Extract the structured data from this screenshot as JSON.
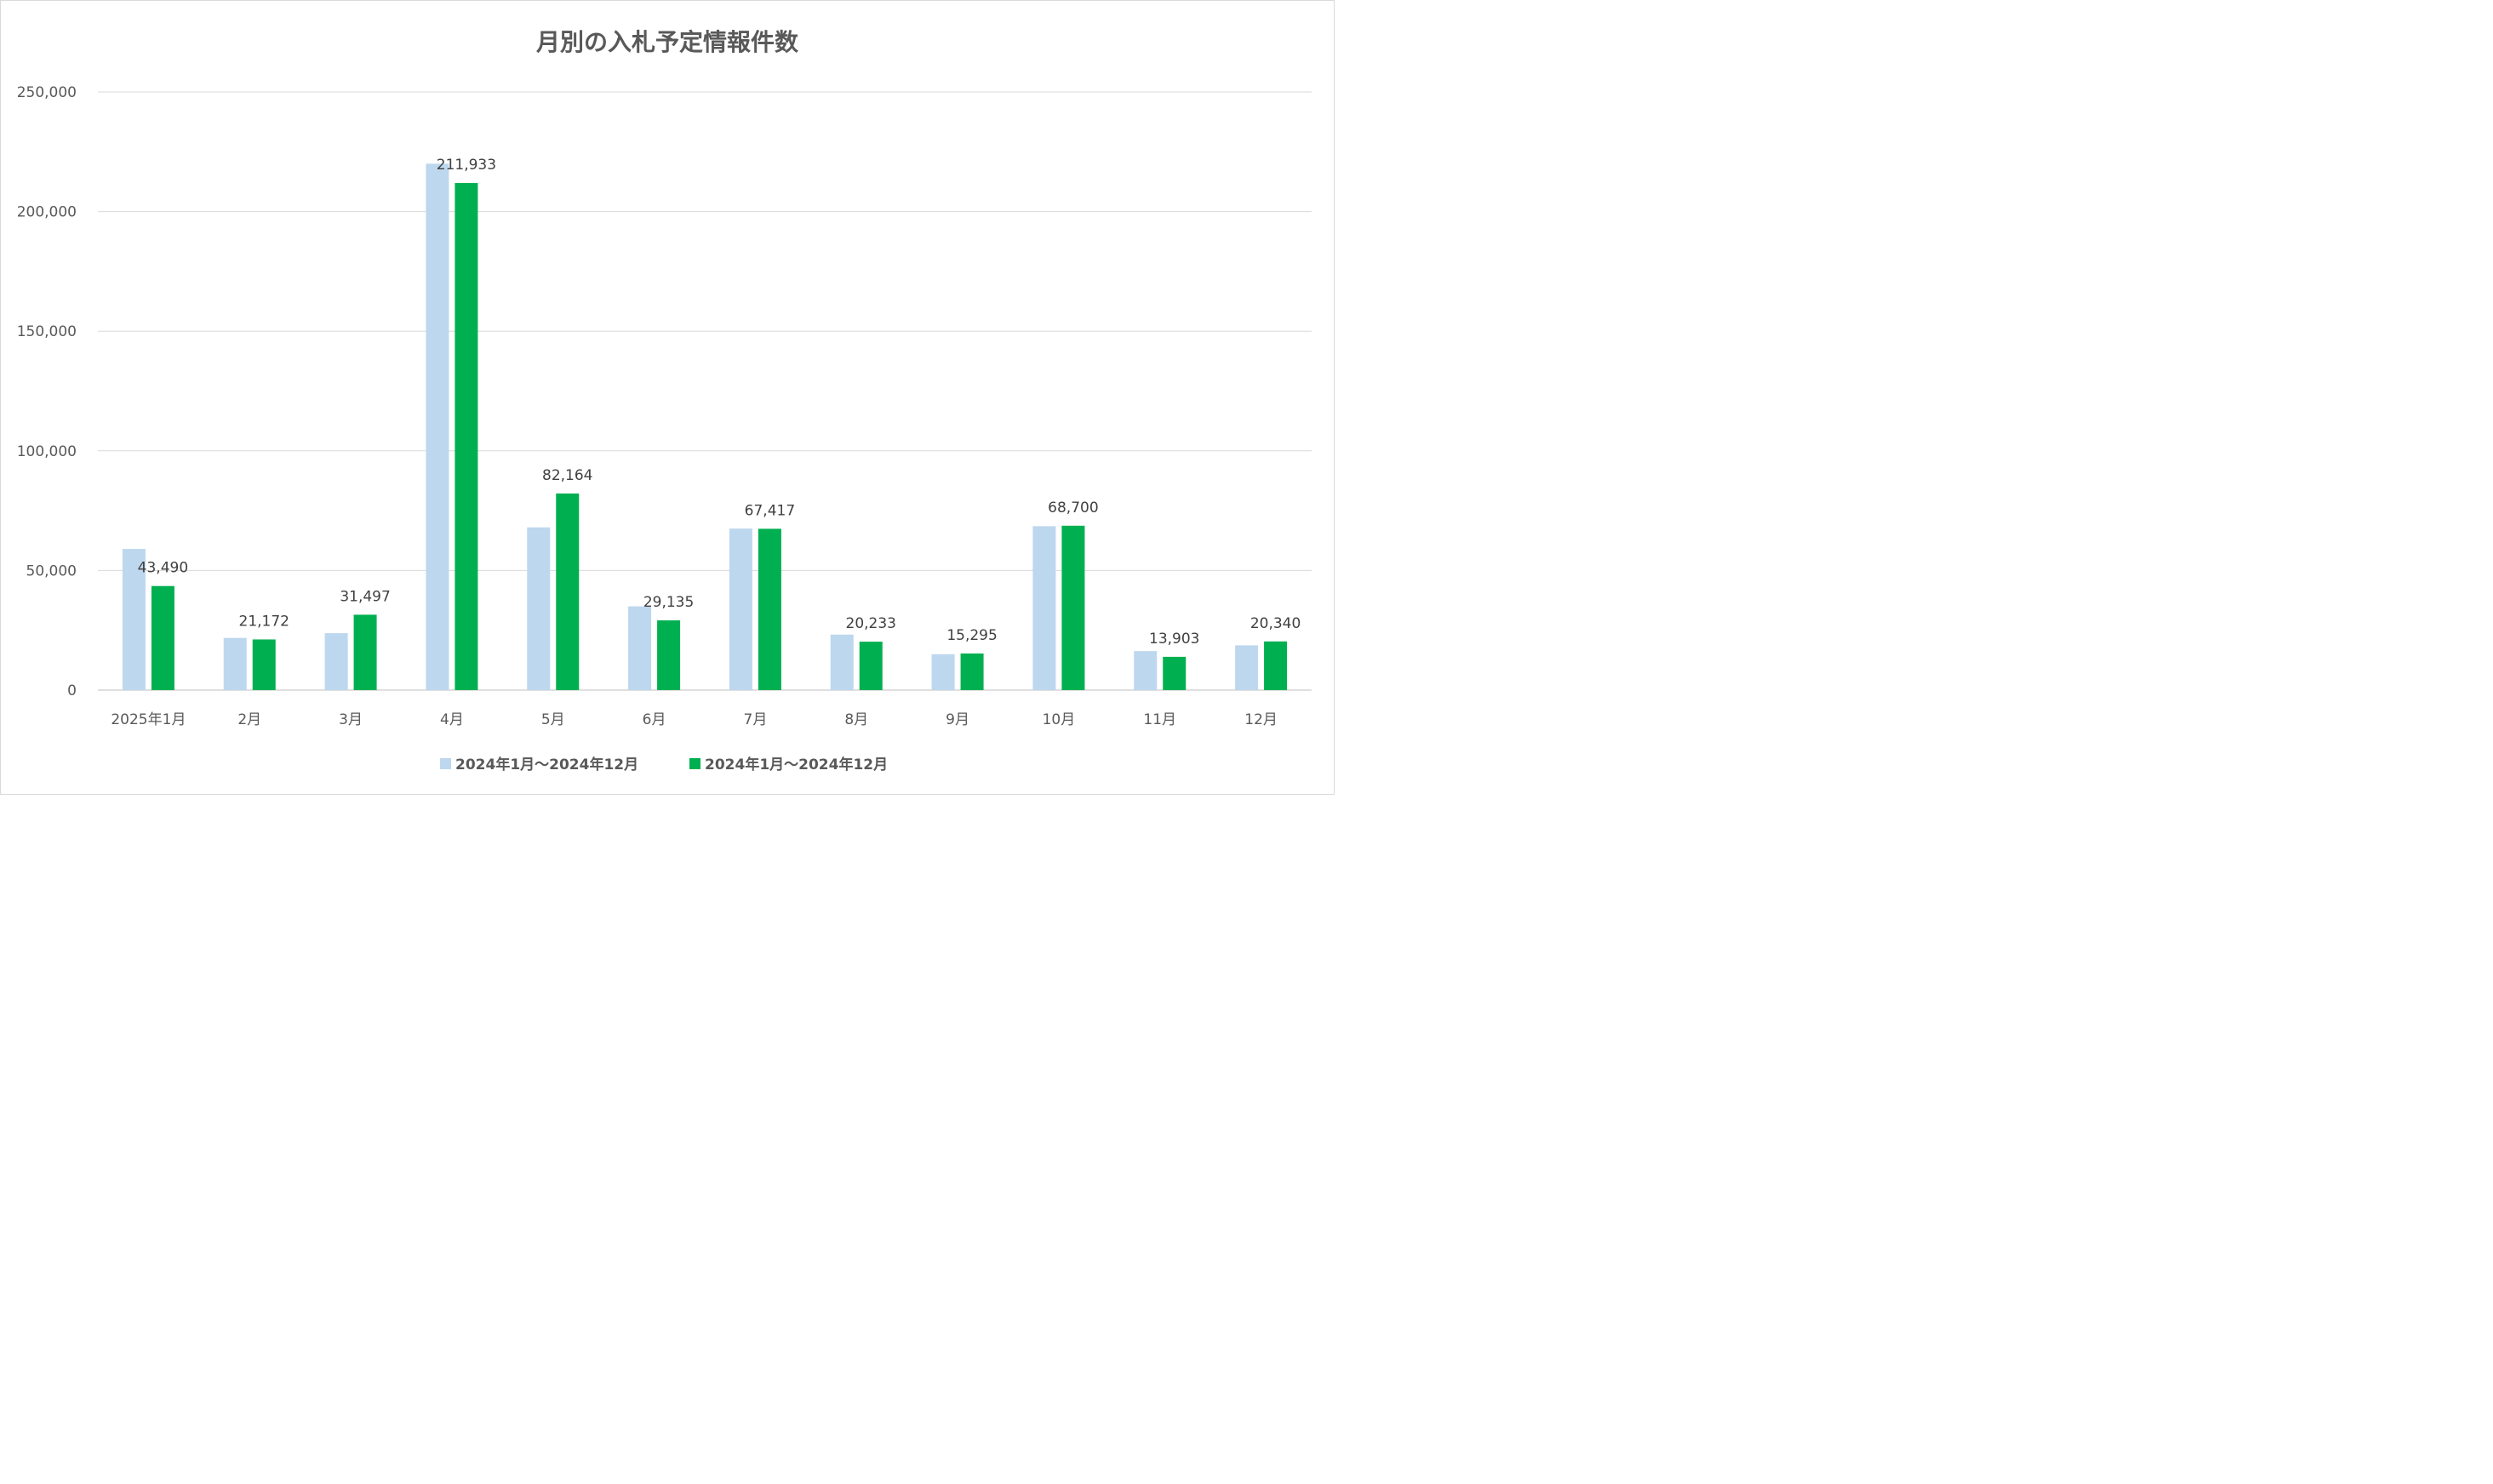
{
  "chart_data": {
    "type": "bar",
    "title": "月別の入札予定情報件数",
    "xlabel": "",
    "ylabel": "",
    "categories": [
      "2025年1月",
      "2月",
      "3月",
      "4月",
      "5月",
      "6月",
      "7月",
      "8月",
      "9月",
      "10月",
      "11月",
      "12月"
    ],
    "ylim": [
      0,
      250000
    ],
    "yticks": [
      0,
      50000,
      100000,
      150000,
      200000,
      250000
    ],
    "ytick_labels": [
      "0",
      "50,000",
      "100,000",
      "150,000",
      "200,000",
      "250,000"
    ],
    "grid": true,
    "legend_position": "bottom",
    "series": [
      {
        "name": "2024年1月～2024年12月",
        "color": "#bdd7ee",
        "values": [
          59000,
          21800,
          23800,
          220000,
          68000,
          35000,
          67500,
          23200,
          15000,
          68500,
          16300,
          18700
        ],
        "data_labels": null
      },
      {
        "name": "2024年1月～2024年12月",
        "color": "#00b050",
        "values": [
          43490,
          21172,
          31497,
          211933,
          82164,
          29135,
          67417,
          20233,
          15295,
          68700,
          13903,
          20340
        ],
        "data_labels": [
          "43,490",
          "21,172",
          "31,497",
          "211,933",
          "82,164",
          "29,135",
          "67,417",
          "20,233",
          "15,295",
          "68,700",
          "13,903",
          "20,340"
        ]
      }
    ]
  }
}
